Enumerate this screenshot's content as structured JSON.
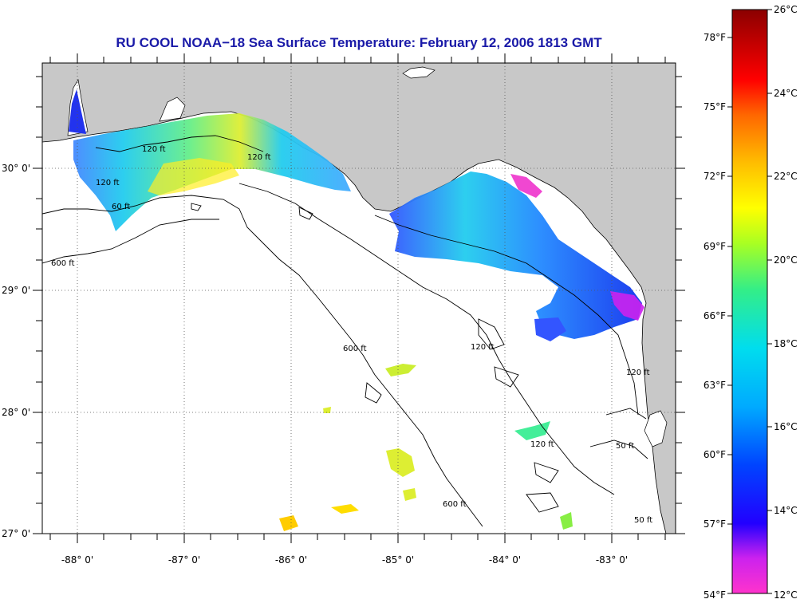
{
  "title": "RU COOL  NOAA−18  Sea Surface Temperature:  February 12, 2006 1813 GMT",
  "longitude_labels": [
    "-88° 0'",
    "-87° 0'",
    "-86° 0'",
    "-85° 0'",
    "-84° 0'",
    "-83° 0'"
  ],
  "latitude_labels": [
    "30° 0'",
    "29° 0'",
    "28° 0'",
    "27° 0'"
  ],
  "contour_labels": [
    "120 ft",
    "600 ft",
    "60 ft",
    "50 ft"
  ],
  "colorbar": {
    "celsius_labels": [
      "26°C",
      "24°C",
      "22°C",
      "20°C",
      "18°C",
      "16°C",
      "14°C",
      "12°C"
    ],
    "fahrenheit_labels": [
      "78°F",
      "75°F",
      "72°F",
      "69°F",
      "66°F",
      "63°F",
      "60°F",
      "57°F",
      "54°F"
    ],
    "min_c": 12,
    "max_c": 26
  },
  "colors": {
    "land": "#c8c8c8",
    "title": "#1a1aa8",
    "water": "#ffffff"
  }
}
